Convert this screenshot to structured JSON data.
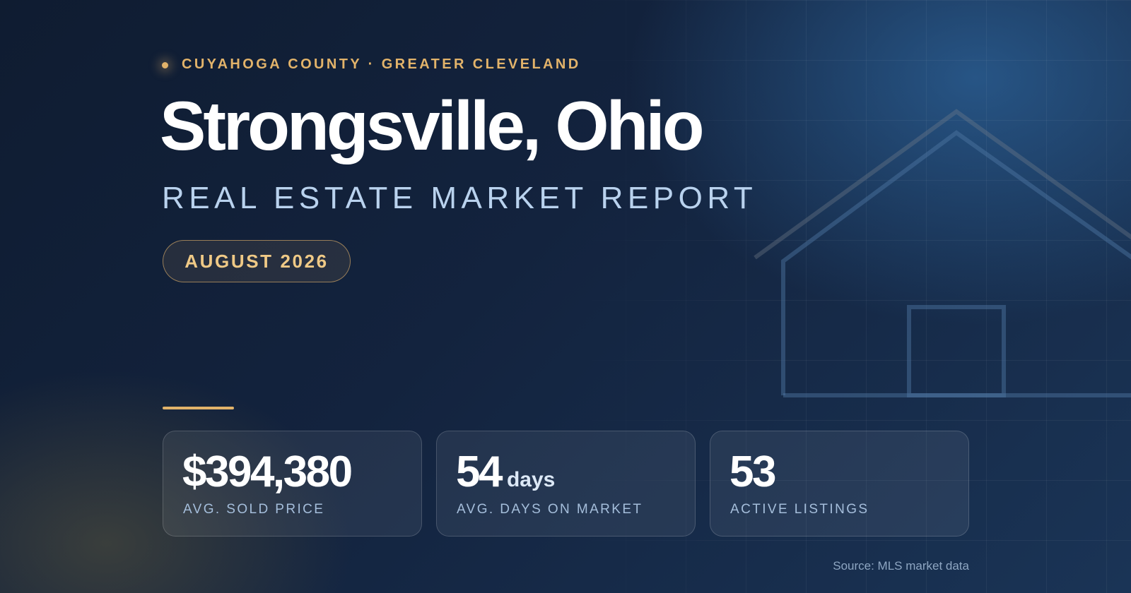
{
  "header": {
    "eyebrow": "CUYAHOGA COUNTY · GREATER CLEVELAND",
    "title": "Strongsville, Ohio",
    "subtitle": "REAL ESTATE MARKET REPORT",
    "date": "AUGUST 2026"
  },
  "stats": [
    {
      "value": "$394,380",
      "label": "AVG. SOLD PRICE"
    },
    {
      "value": "54",
      "unit": "days",
      "label": "AVG. DAYS ON MARKET"
    },
    {
      "value": "53",
      "label": "ACTIVE LISTINGS"
    }
  ],
  "source": "Source: MLS market data"
}
